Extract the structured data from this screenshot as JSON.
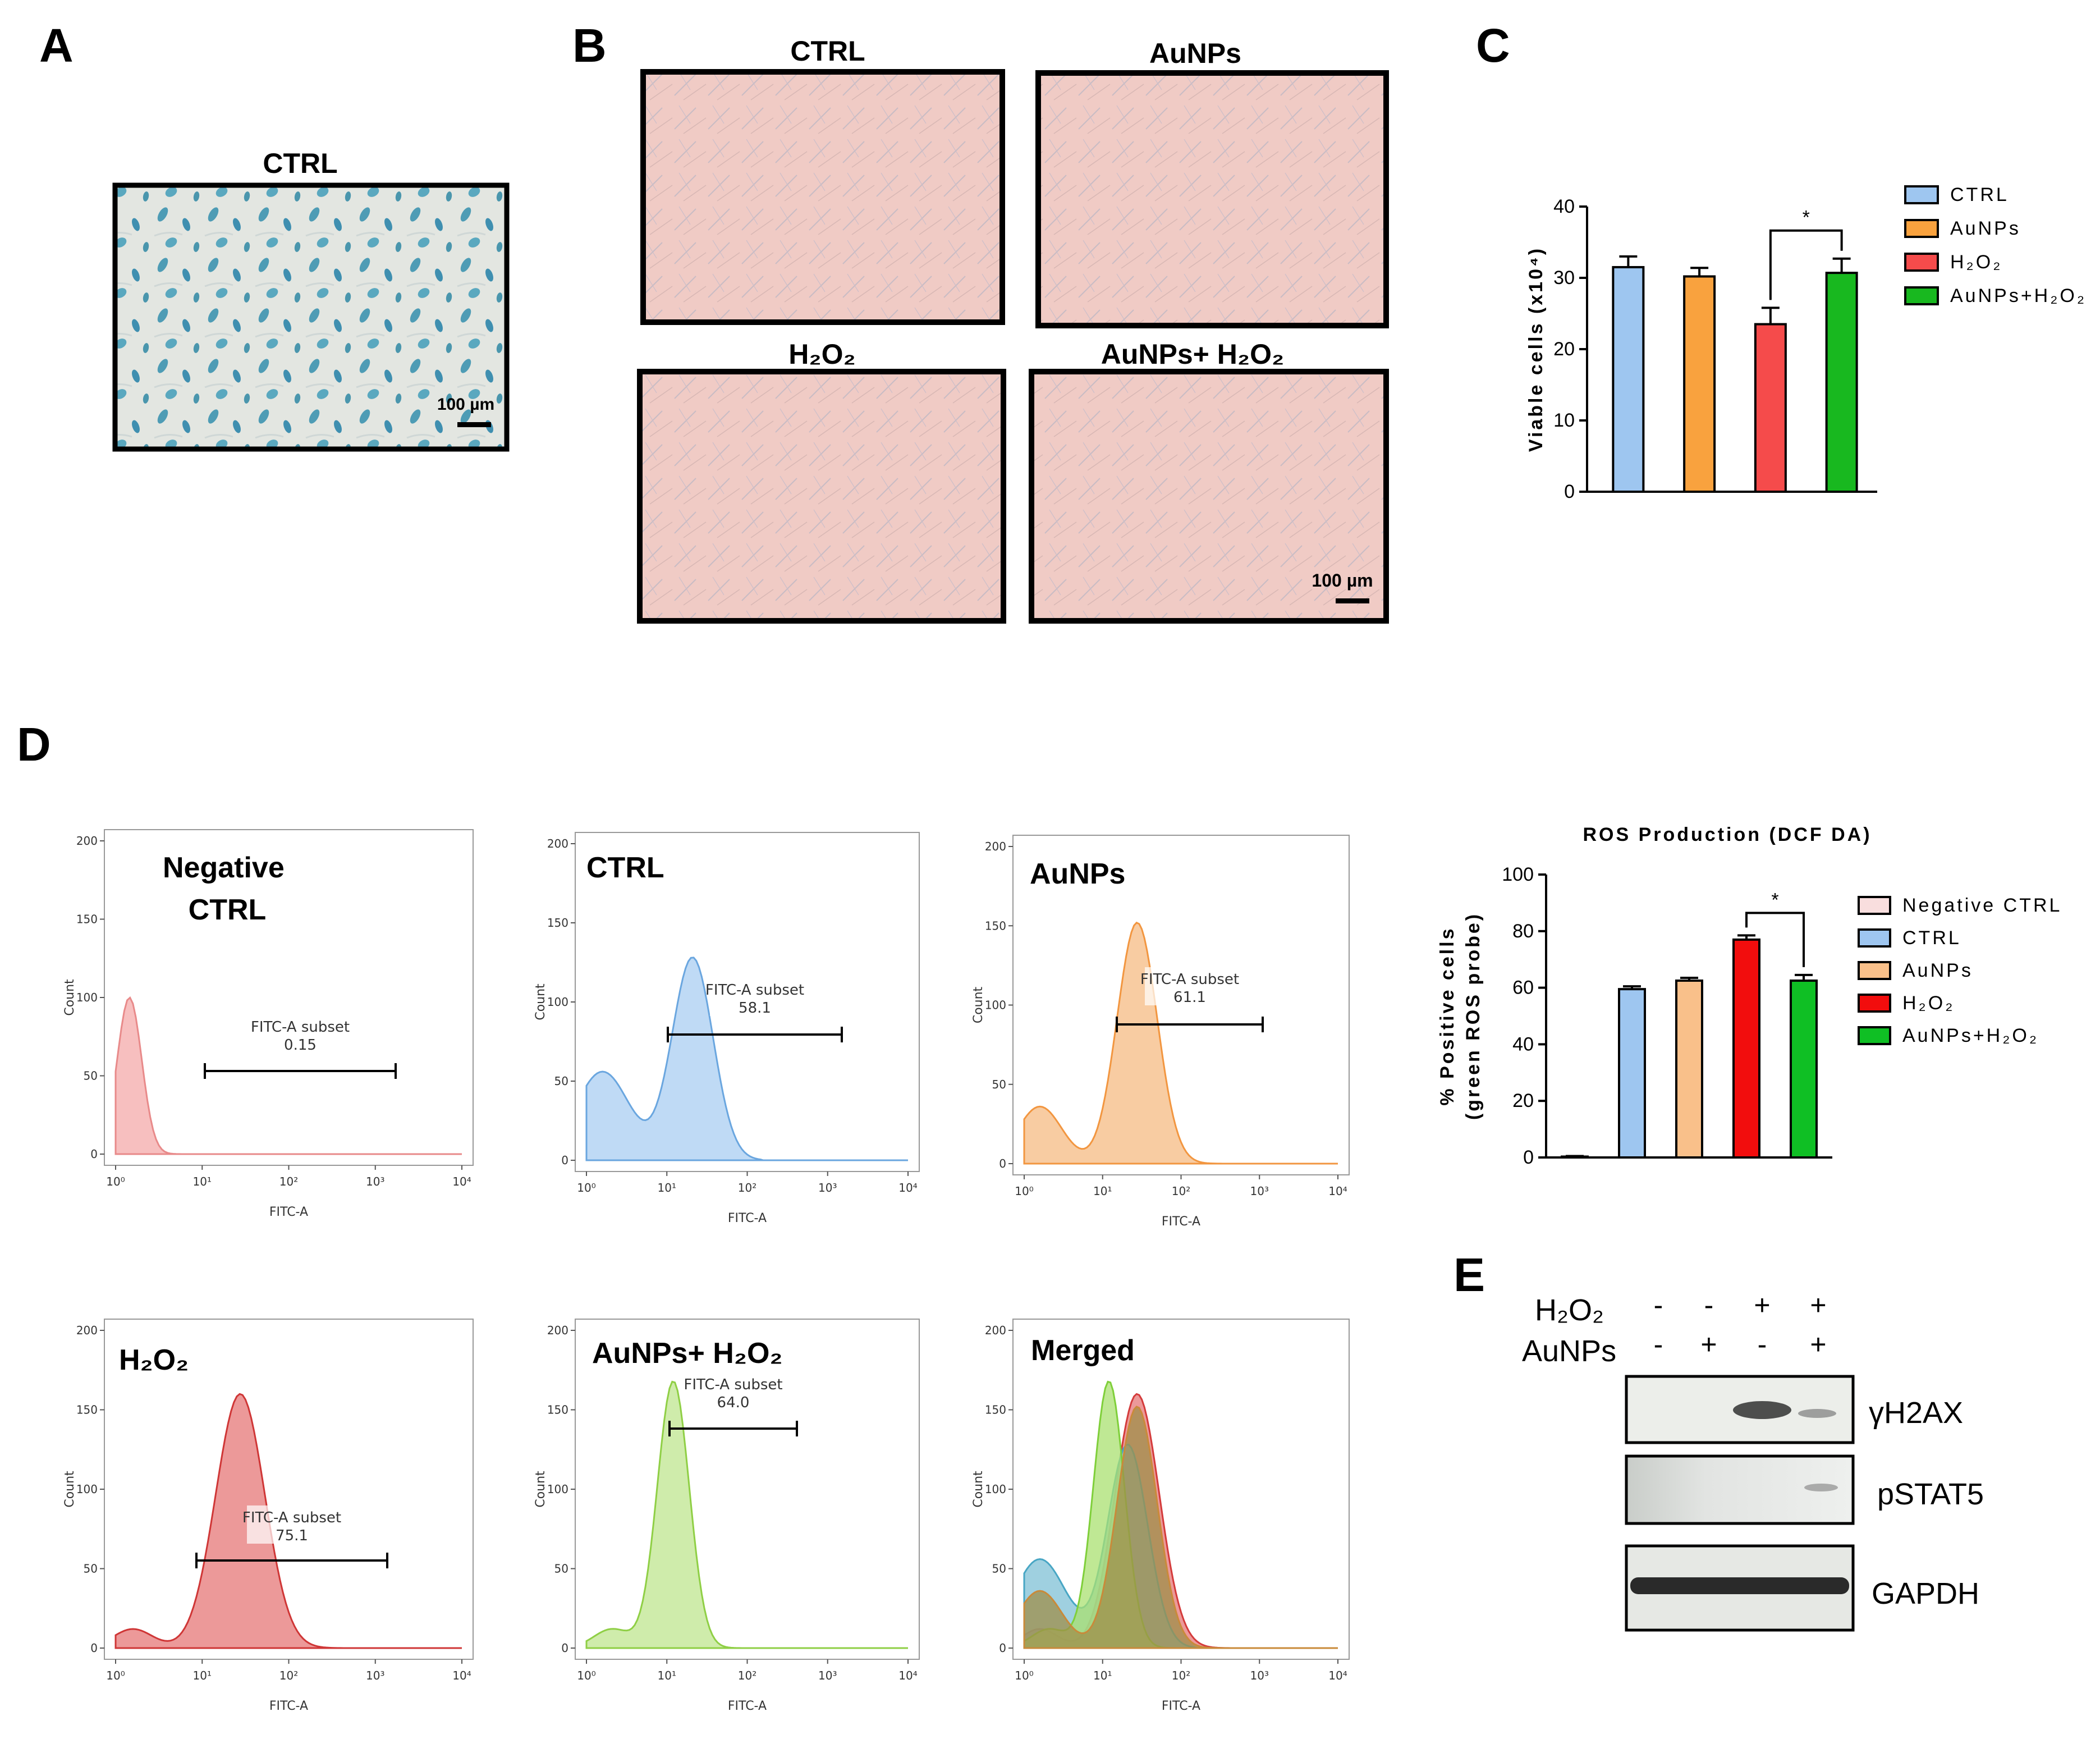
{
  "figure": {
    "panel_letters": [
      "A",
      "B",
      "C",
      "D",
      "E"
    ],
    "panel_A": {
      "title": "CTRL",
      "scale_bar": "100 µm"
    },
    "panel_B": {
      "titles": [
        "CTRL",
        "AuNPs",
        "H₂O₂",
        "AuNPs+ H₂O₂"
      ],
      "scale_bar": "100 µm"
    },
    "panel_D_flow": {
      "x_axis_label": "FITC-A",
      "y_axis_label": "Count",
      "gate_label": "FITC-A subset",
      "y_ticks": [
        "0",
        "50",
        "100",
        "150",
        "200"
      ],
      "x_ticks": [
        "10⁰",
        "10¹",
        "10²",
        "10³",
        "10⁴"
      ],
      "histograms": [
        {
          "title": "Negative CTRL",
          "gate_value": "0.15",
          "color": "#f4a9a9"
        },
        {
          "title": "CTRL",
          "gate_value": "58.1",
          "color": "#a9cdf2"
        },
        {
          "title": "AuNPs",
          "gate_value": "61.1",
          "color": "#f6bb83"
        },
        {
          "title": "H₂O₂",
          "gate_value": "75.1",
          "color": "#e57777"
        },
        {
          "title": "AuNPs+ H₂O₂",
          "gate_value": "64.0",
          "color": "#bfe58f"
        },
        {
          "title": "Merged",
          "gate_value": "",
          "color": "#8c9a55"
        }
      ]
    },
    "panel_E": {
      "row_labels": [
        "H₂O₂",
        "AuNPs"
      ],
      "h2o2_signs": [
        "-",
        "-",
        "+",
        "+"
      ],
      "aunps_signs": [
        "-",
        "+",
        "-",
        "+"
      ],
      "bands": [
        "γH2AX",
        "pSTAT5",
        "GAPDH"
      ]
    }
  },
  "chart_data": [
    {
      "type": "bar",
      "panel": "C",
      "title": "",
      "ylabel": "Viable cells (x10⁴)",
      "xlabel": "",
      "ylim": [
        0,
        40
      ],
      "y_ticks": [
        "0",
        "10",
        "20",
        "30",
        "40"
      ],
      "categories": [
        "CTRL",
        "AuNPs",
        "H₂O₂",
        "AuNPs+H₂O₂"
      ],
      "values": [
        31.5,
        30.2,
        23.5,
        30.7
      ],
      "errors": [
        1.5,
        1.2,
        2.3,
        2.0
      ],
      "colors": [
        "#9ec6f0",
        "#f9a23e",
        "#f54b4b",
        "#18b81f"
      ],
      "significance": {
        "between": [
          2,
          3
        ],
        "label": "*"
      },
      "legend": [
        "CTRL",
        "AuNPs",
        "H₂O₂",
        "AuNPs+H₂O₂"
      ]
    },
    {
      "type": "bar",
      "panel": "D",
      "title": "ROS Production (DCF DA)",
      "ylabel": "% Positive cells",
      "ylabel2": "(green ROS probe)",
      "xlabel": "",
      "ylim": [
        0,
        100
      ],
      "y_ticks": [
        "0",
        "20",
        "40",
        "60",
        "80",
        "100"
      ],
      "categories": [
        "Negative CTRL",
        "CTRL",
        "AuNPs",
        "H₂O₂",
        "AuNPs+H₂O₂"
      ],
      "values": [
        0.3,
        59.5,
        62.5,
        77,
        62.5
      ],
      "errors": [
        0.2,
        1.0,
        1.0,
        1.5,
        2.0
      ],
      "colors": [
        "#f9dede",
        "#9ec6f0",
        "#f9c08a",
        "#f20d0d",
        "#0fbf24"
      ],
      "significance": {
        "between": [
          3,
          4
        ],
        "label": "*"
      },
      "legend": [
        "Negative CTRL",
        "CTRL",
        "AuNPs",
        "H₂O₂",
        "AuNPs+H₂O₂"
      ]
    }
  ]
}
